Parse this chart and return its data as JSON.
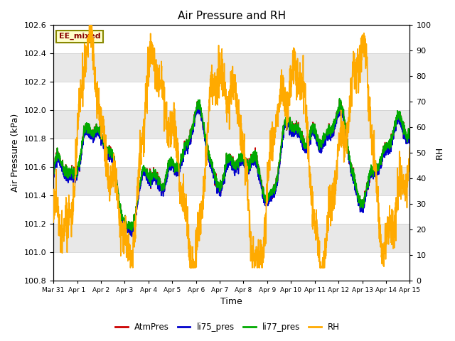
{
  "title": "Air Pressure and RH",
  "xlabel": "Time",
  "ylabel_left": "Air Pressure (kPa)",
  "ylabel_right": "RH",
  "ylim_left": [
    100.8,
    102.6
  ],
  "ylim_right": [
    0,
    100
  ],
  "yticks_left": [
    100.8,
    101.0,
    101.2,
    101.4,
    101.6,
    101.8,
    102.0,
    102.2,
    102.4,
    102.6
  ],
  "yticks_right": [
    0,
    10,
    20,
    30,
    40,
    50,
    60,
    70,
    80,
    90,
    100
  ],
  "colors": {
    "AtmPres": "#cc0000",
    "li75_pres": "#0000cc",
    "li77_pres": "#00aa00",
    "RH": "#ffaa00"
  },
  "linewidths": {
    "AtmPres": 1.2,
    "li75_pres": 1.2,
    "li77_pres": 1.2,
    "RH": 1.2
  },
  "legend_label": "EE_mixed",
  "legend_label_color": "#880000",
  "legend_label_bg": "#ffffcc",
  "legend_label_border": "#888800",
  "plot_bg_color": "#ffffff",
  "band_color": "#e8e8e8",
  "n_days": 15,
  "figsize": [
    6.4,
    4.8
  ],
  "dpi": 100
}
